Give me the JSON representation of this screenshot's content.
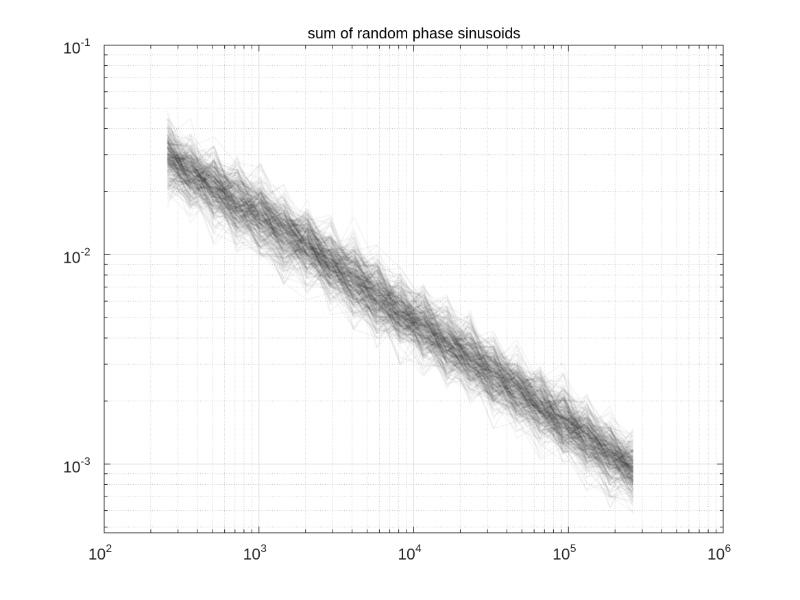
{
  "chart_data": {
    "type": "line",
    "title": "sum of random phase sinusoids",
    "xlabel": "",
    "ylabel": "",
    "xscale": "log",
    "yscale": "log",
    "xlim": [
      100,
      1000000
    ],
    "ylim": [
      0.00047,
      0.1
    ],
    "grid": true,
    "minor_grid": true,
    "x_ticks": [
      {
        "value": 100,
        "base": "10",
        "exp": "2"
      },
      {
        "value": 1000,
        "base": "10",
        "exp": "3"
      },
      {
        "value": 10000,
        "base": "10",
        "exp": "4"
      },
      {
        "value": 100000,
        "base": "10",
        "exp": "5"
      },
      {
        "value": 1000000,
        "base": "10",
        "exp": "6"
      }
    ],
    "y_ticks": [
      {
        "value": 0.001,
        "base": "10",
        "exp": "-3"
      },
      {
        "value": 0.01,
        "base": "10",
        "exp": "-2"
      },
      {
        "value": 0.1,
        "base": "10",
        "exp": "-1"
      }
    ],
    "series_count": 300,
    "series_color": "#000000",
    "series_opacity": 0.035,
    "x": [
      256,
      362,
      512,
      724,
      1024,
      1448,
      2048,
      2896,
      4096,
      5793,
      8192,
      11585,
      16384,
      23170,
      32768,
      46341,
      65536,
      92682,
      131072,
      185364,
      262144
    ],
    "median": [
      0.0295,
      0.0245,
      0.021,
      0.0175,
      0.0155,
      0.0128,
      0.011,
      0.0091,
      0.0077,
      0.0064,
      0.0054,
      0.0045,
      0.0038,
      0.0032,
      0.0027,
      0.00225,
      0.0019,
      0.0016,
      0.00135,
      0.00112,
      0.00095
    ],
    "lower_envelope": [
      0.0135,
      0.0125,
      0.0105,
      0.0095,
      0.0082,
      0.0072,
      0.006,
      0.0052,
      0.0044,
      0.0036,
      0.003,
      0.0025,
      0.0021,
      0.00175,
      0.00148,
      0.00125,
      0.00105,
      0.0009,
      0.00075,
      0.00062,
      0.0005
    ],
    "upper_envelope": [
      0.06,
      0.05,
      0.047,
      0.04,
      0.037,
      0.033,
      0.026,
      0.022,
      0.019,
      0.0165,
      0.0125,
      0.0105,
      0.0085,
      0.007,
      0.006,
      0.0048,
      0.0042,
      0.0036,
      0.0032,
      0.0025,
      0.0017
    ]
  }
}
